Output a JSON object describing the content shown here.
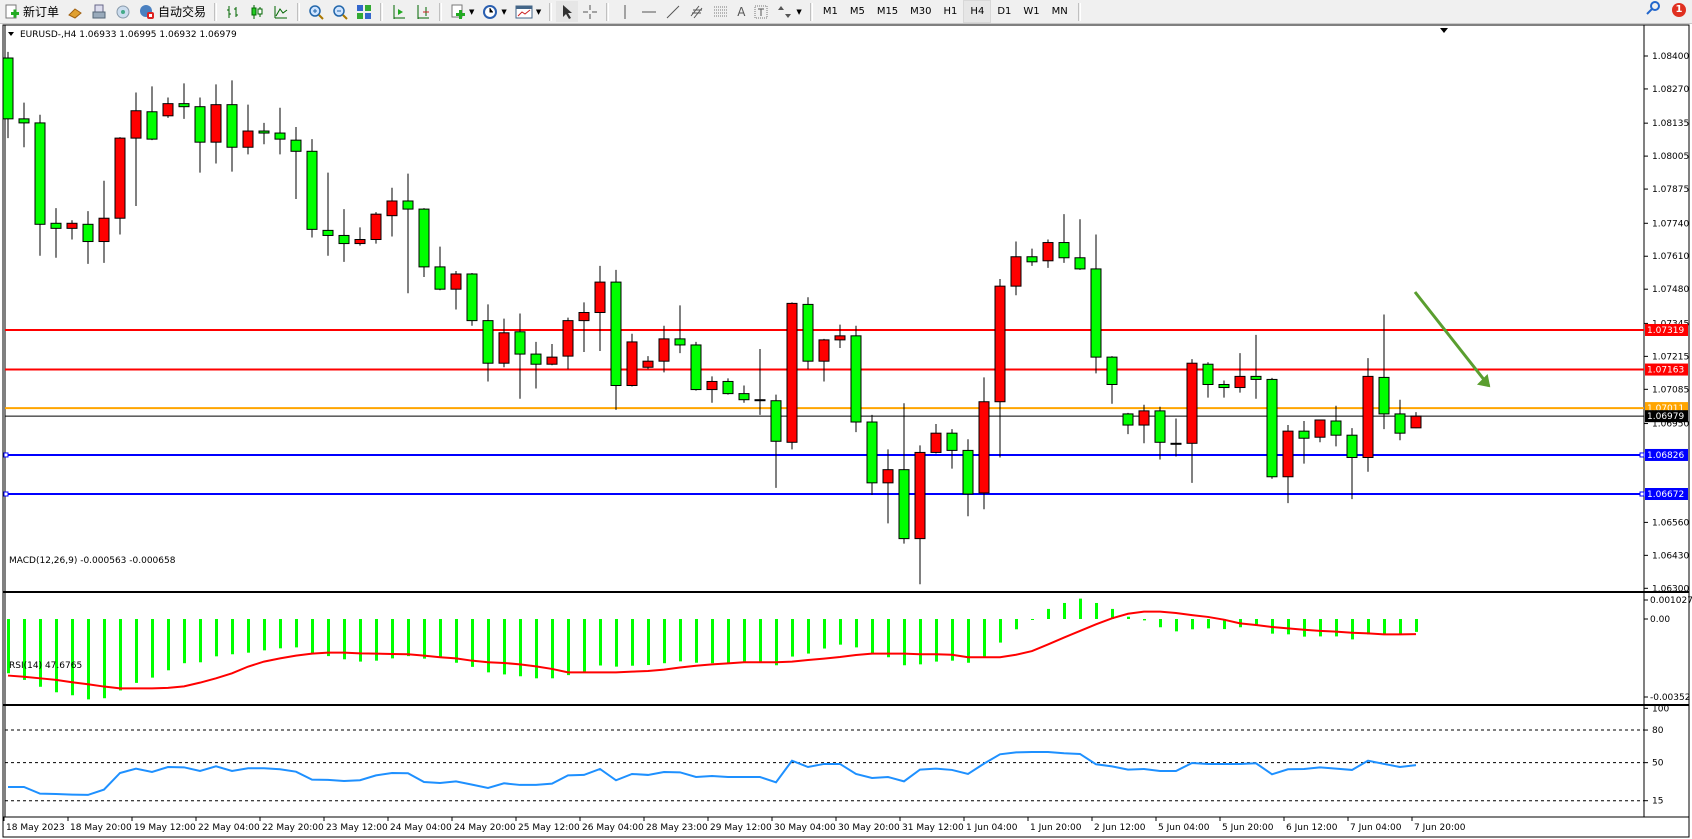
{
  "toolbar": {
    "new_order": "新订单",
    "auto_trading": "自动交易",
    "timeframes": [
      "M1",
      "M5",
      "M15",
      "M30",
      "H1",
      "H4",
      "D1",
      "W1",
      "MN"
    ],
    "active_timeframe": "H4",
    "notification_count": "1"
  },
  "chart": {
    "header": "EURUSD-,H4  1.06933 1.06995 1.06932 1.06979",
    "symbol": "EURUSD-",
    "period": "H4",
    "colors": {
      "bull_body": "#ff0000",
      "bear_body": "#00ff00",
      "wick": "#000000",
      "background": "#ffffff",
      "arrow": "#5a9e2f"
    },
    "price_axis": [
      "1.08400",
      "1.08270",
      "1.08135",
      "1.08005",
      "1.07875",
      "1.07740",
      "1.07610",
      "1.07480",
      "1.07345",
      "1.07215",
      "1.07085",
      "1.06950",
      "1.06560",
      "1.06430",
      "1.06300"
    ],
    "levels": [
      {
        "price": "1.07319",
        "color": "#ff0000"
      },
      {
        "price": "1.07163",
        "color": "#ff0000"
      },
      {
        "price": "1.07011",
        "color": "#ffa500"
      },
      {
        "price": "1.06979",
        "color": "#000000"
      },
      {
        "price": "1.06826",
        "color": "#0000ff"
      },
      {
        "price": "1.06672",
        "color": "#0000ff"
      }
    ],
    "time_axis": [
      "18 May 2023",
      "18 May 20:00",
      "19 May 12:00",
      "22 May 04:00",
      "22 May 20:00",
      "23 May 12:00",
      "24 May 04:00",
      "24 May 20:00",
      "25 May 12:00",
      "26 May 04:00",
      "28 May 23:00",
      "29 May 12:00",
      "30 May 04:00",
      "30 May 20:00",
      "31 May 12:00",
      "1 Jun 04:00",
      "1 Jun 20:00",
      "2 Jun 12:00",
      "5 Jun 04:00",
      "5 Jun 20:00",
      "6 Jun 12:00",
      "7 Jun 04:00",
      "7 Jun 20:00"
    ],
    "candles_ohlc": [
      [
        1.08392,
        1.08416,
        1.08076,
        1.08152
      ],
      [
        1.08152,
        1.08216,
        1.0804,
        1.08136
      ],
      [
        1.08136,
        1.08168,
        1.07612,
        1.07736
      ],
      [
        1.0774,
        1.078,
        1.07604,
        1.0772
      ],
      [
        1.0772,
        1.07752,
        1.07676,
        1.0774
      ],
      [
        1.07736,
        1.07788,
        1.0758,
        1.07668
      ],
      [
        1.07668,
        1.07908,
        1.07584,
        1.0776
      ],
      [
        1.0776,
        1.0808,
        1.07696,
        1.08076
      ],
      [
        1.08076,
        1.08256,
        1.07808,
        1.08184
      ],
      [
        1.0818,
        1.0828,
        1.08068,
        1.08072
      ],
      [
        1.08164,
        1.08236,
        1.08156,
        1.08212
      ],
      [
        1.08212,
        1.08292,
        1.08152,
        1.082
      ],
      [
        1.082,
        1.08236,
        1.0794,
        1.0806
      ],
      [
        1.0806,
        1.08288,
        1.07976,
        1.08208
      ],
      [
        1.08208,
        1.08304,
        1.07944,
        1.0804
      ],
      [
        1.0804,
        1.08208,
        1.08012,
        1.08104
      ],
      [
        1.08104,
        1.08136,
        1.08052,
        1.08096
      ],
      [
        1.08096,
        1.08196,
        1.08012,
        1.08072
      ],
      [
        1.08068,
        1.0812,
        1.07836,
        1.08024
      ],
      [
        1.08024,
        1.08072,
        1.07684,
        1.07716
      ],
      [
        1.07712,
        1.0794,
        1.07612,
        1.07692
      ],
      [
        1.07692,
        1.07796,
        1.07588,
        1.0766
      ],
      [
        1.0766,
        1.07724,
        1.07652,
        1.07676
      ],
      [
        1.07676,
        1.07784,
        1.0766,
        1.07776
      ],
      [
        1.0777,
        1.0788,
        1.07688,
        1.07828
      ],
      [
        1.07828,
        1.07936,
        1.07464,
        1.07796
      ],
      [
        1.07796,
        1.078,
        1.07528,
        1.07568
      ],
      [
        1.07568,
        1.07648,
        1.07476,
        1.0748
      ],
      [
        1.0748,
        1.07552,
        1.074,
        1.0754
      ],
      [
        1.0754,
        1.07544,
        1.07336,
        1.07356
      ],
      [
        1.07356,
        1.0742,
        1.07116,
        1.07188
      ],
      [
        1.07188,
        1.07364,
        1.07172,
        1.07308
      ],
      [
        1.07312,
        1.07384,
        1.07048,
        1.07224
      ],
      [
        1.07224,
        1.07272,
        1.07088,
        1.07184
      ],
      [
        1.07184,
        1.07264,
        1.0718,
        1.07212
      ],
      [
        1.07216,
        1.07368,
        1.07164,
        1.07356
      ],
      [
        1.07356,
        1.07428,
        1.07232,
        1.07388
      ],
      [
        1.07388,
        1.07572,
        1.07236,
        1.07508
      ],
      [
        1.07508,
        1.07556,
        1.07004,
        1.071
      ],
      [
        1.071,
        1.07304,
        1.07096,
        1.07272
      ],
      [
        1.07172,
        1.07216,
        1.07164,
        1.07196
      ],
      [
        1.07196,
        1.07336,
        1.07152,
        1.07284
      ],
      [
        1.07284,
        1.07416,
        1.07228,
        1.0726
      ],
      [
        1.0726,
        1.07272,
        1.0708,
        1.07084
      ],
      [
        1.07084,
        1.07136,
        1.07032,
        1.07116
      ],
      [
        1.07116,
        1.07128,
        1.07064,
        1.07068
      ],
      [
        1.07068,
        1.071,
        1.07032,
        1.07044
      ],
      [
        1.07044,
        1.07244,
        1.06984,
        1.07044
      ],
      [
        1.0704,
        1.07064,
        1.06696,
        1.0688
      ],
      [
        1.06876,
        1.07428,
        1.06848,
        1.07424
      ],
      [
        1.0742,
        1.07448,
        1.07164,
        1.07196
      ],
      [
        1.07196,
        1.07284,
        1.07116,
        1.0728
      ],
      [
        1.0728,
        1.0734,
        1.07248,
        1.07296
      ],
      [
        1.07296,
        1.07336,
        1.06916,
        1.06956
      ],
      [
        1.06956,
        1.06984,
        1.06668,
        1.06716
      ],
      [
        1.06716,
        1.06848,
        1.06556,
        1.06768
      ],
      [
        1.06768,
        1.0703,
        1.06476,
        1.06496
      ],
      [
        1.06496,
        1.06864,
        1.06316,
        1.06836
      ],
      [
        1.06836,
        1.06948,
        1.06832,
        1.06912
      ],
      [
        1.06912,
        1.06928,
        1.06772,
        1.06844
      ],
      [
        1.06844,
        1.06888,
        1.06584,
        1.06672
      ],
      [
        1.06676,
        1.07132,
        1.06612,
        1.07036
      ],
      [
        1.07036,
        1.0752,
        1.06816,
        1.07492
      ],
      [
        1.07492,
        1.07668,
        1.07456,
        1.07608
      ],
      [
        1.07608,
        1.0764,
        1.07572,
        1.07588
      ],
      [
        1.07592,
        1.07676,
        1.07564,
        1.07664
      ],
      [
        1.07664,
        1.07776,
        1.07584,
        1.07604
      ],
      [
        1.07604,
        1.07756,
        1.07556,
        1.0756
      ],
      [
        1.0756,
        1.07696,
        1.07148,
        1.07212
      ],
      [
        1.07212,
        1.07216,
        1.07028,
        1.07104
      ],
      [
        1.06988,
        1.06992,
        1.06908,
        1.06944
      ],
      [
        1.06944,
        1.07024,
        1.06872,
        1.07
      ],
      [
        1.07,
        1.07016,
        1.06808,
        1.06876
      ],
      [
        1.06872,
        1.0697,
        1.0682,
        1.06872
      ],
      [
        1.06872,
        1.07204,
        1.06716,
        1.07188
      ],
      [
        1.07184,
        1.07192,
        1.07052,
        1.07104
      ],
      [
        1.07104,
        1.0712,
        1.07052,
        1.07092
      ],
      [
        1.07092,
        1.07228,
        1.07072,
        1.07136
      ],
      [
        1.07136,
        1.073,
        1.07048,
        1.07124
      ],
      [
        1.07124,
        1.0713,
        1.06732,
        1.0674
      ],
      [
        1.0674,
        1.06944,
        1.06636,
        1.0692
      ],
      [
        1.0692,
        1.0696,
        1.06792,
        1.06892
      ],
      [
        1.06896,
        1.06964,
        1.06876,
        1.06964
      ],
      [
        1.0696,
        1.0702,
        1.0686,
        1.06904
      ],
      [
        1.06904,
        1.06932,
        1.06652,
        1.06816
      ],
      [
        1.06816,
        1.07208,
        1.0676,
        1.07136
      ],
      [
        1.07132,
        1.0738,
        1.06928,
        1.06988
      ],
      [
        1.06988,
        1.07044,
        1.06884,
        1.06912
      ],
      [
        1.06933,
        1.06995,
        1.06932,
        1.06979
      ]
    ]
  },
  "macd": {
    "label": "MACD(12,26,9) -0.000563 -0.000658",
    "axis": [
      "0.001027",
      "0.00",
      "-0.00352"
    ],
    "ylim": [
      -0.00352,
      0.001027
    ],
    "histogram_e5": [
      -237,
      -266,
      -296,
      -320,
      -333,
      -351,
      -346,
      -312,
      -279,
      -256,
      -224,
      -193,
      -189,
      -163,
      -154,
      -147,
      -137,
      -128,
      -124,
      -153,
      -162,
      -176,
      -186,
      -182,
      -172,
      -162,
      -173,
      -170,
      -191,
      -209,
      -233,
      -242,
      -250,
      -259,
      -259,
      -245,
      -232,
      -203,
      -208,
      -204,
      -201,
      -193,
      -185,
      -191,
      -193,
      -194,
      -191,
      -191,
      -202,
      -164,
      -151,
      -129,
      -112,
      -124,
      -154,
      -167,
      -202,
      -198,
      -186,
      -182,
      -191,
      -166,
      -103,
      -45,
      -3,
      44,
      70,
      89,
      70,
      44,
      10,
      -6,
      -36,
      -54,
      -45,
      -41,
      -44,
      -36,
      -29,
      -64,
      -67,
      -77,
      -76,
      -76,
      -89,
      -67,
      -65,
      -65,
      -56.3
    ],
    "signal_e5": [
      -247,
      -252,
      -259,
      -266,
      -276,
      -285,
      -295,
      -303,
      -303,
      -303,
      -301,
      -294,
      -278,
      -259,
      -237,
      -208,
      -186,
      -172,
      -160,
      -151,
      -147,
      -147,
      -150,
      -151,
      -153,
      -154,
      -160,
      -167,
      -172,
      -182,
      -189,
      -192,
      -198,
      -207,
      -218,
      -233,
      -233,
      -233,
      -233,
      -230,
      -227,
      -221,
      -212,
      -204,
      -198,
      -194,
      -189,
      -189,
      -189,
      -186,
      -179,
      -173,
      -166,
      -157,
      -151,
      -151,
      -151,
      -154,
      -154,
      -156,
      -167,
      -167,
      -167,
      -156,
      -140,
      -111,
      -81,
      -52,
      -23,
      3,
      23,
      32,
      32,
      26,
      17,
      9,
      -3,
      -19,
      -26,
      -35,
      -41,
      -47,
      -52,
      -55,
      -60,
      -63,
      -67,
      -67,
      -65.8
    ],
    "colors": {
      "histogram": "#00ff00",
      "signal": "#ff0000"
    }
  },
  "rsi": {
    "label": "RSI(14) 47.6765",
    "axis": [
      "100",
      "80",
      "50",
      "15"
    ],
    "levels": [
      80,
      50,
      15
    ],
    "values": [
      27.6,
      27.6,
      21.5,
      21.2,
      20.6,
      20.3,
      25.2,
      40.5,
      44.5,
      41.4,
      46,
      45.7,
      42.3,
      46.6,
      42.3,
      44.8,
      44.8,
      43.9,
      41.7,
      34.4,
      34.1,
      33.1,
      33.8,
      38.3,
      40.5,
      40.2,
      32.2,
      31.3,
      32.8,
      29.8,
      26.7,
      31,
      29.5,
      29.5,
      30.7,
      38.3,
      38.7,
      44.2,
      33.8,
      39.6,
      38.7,
      41.4,
      41.1,
      36.8,
      37.7,
      36.8,
      36.8,
      36.8,
      31.9,
      51.8,
      46,
      48.8,
      48.8,
      39.6,
      35.9,
      36.8,
      32.8,
      43.6,
      44.5,
      43.3,
      39.6,
      49.1,
      57.7,
      59.5,
      59.8,
      59.8,
      58.6,
      58,
      48.5,
      46.6,
      43.6,
      44.2,
      42.3,
      42.3,
      49.7,
      48.8,
      48.8,
      48.8,
      49.4,
      39.3,
      43.9,
      44.2,
      45.7,
      44.5,
      43.3,
      51.8,
      48.8,
      46,
      47.6765
    ],
    "color": "#1e90ff"
  }
}
